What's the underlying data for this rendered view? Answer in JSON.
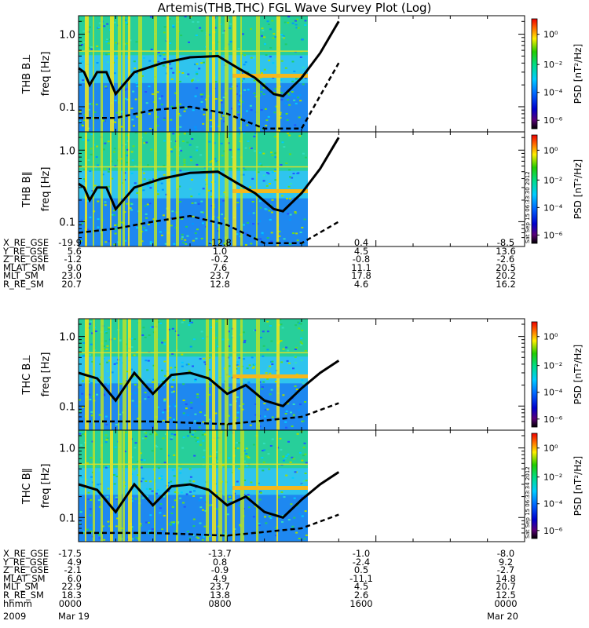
{
  "title": "Artemis(THB,THC) FGL Wave Survey Plot (Log)",
  "panels": [
    {
      "label": "THB B⊥",
      "ylabel": "freq [Hz]",
      "cbar_label": "PSD [nT²/Hz]"
    },
    {
      "label": "THB B∥",
      "ylabel": "freq [Hz]",
      "cbar_label": "PSD [nT²/Hz]"
    },
    {
      "label": "THC B⊥",
      "ylabel": "freq [Hz]",
      "cbar_label": "PSD [nT²/Hz]"
    },
    {
      "label": "THC B∥",
      "ylabel": "freq [Hz]",
      "cbar_label": "PSD [nT²/Hz]"
    }
  ],
  "ytick_labels": [
    "1.0",
    "0.1"
  ],
  "cbar_tick_labels": [
    "10⁰",
    "10⁻²",
    "10⁻⁴",
    "10⁻⁶"
  ],
  "timestamps": [
    "Sat Sep 15 06:33:30 2012",
    "Sat Sep 15 06:33:34 2012"
  ],
  "ephem_thb": {
    "rows": [
      {
        "name": "X_RE_GSE",
        "vals": [
          "-19.9",
          "-12.8",
          "0.4",
          "-8.5"
        ]
      },
      {
        "name": "Y_RE_GSE",
        "vals": [
          "5.6",
          "1.0",
          "4.5",
          "13.6"
        ]
      },
      {
        "name": "Z_RE_GSE",
        "vals": [
          "-1.2",
          "-0.2",
          "-0.8",
          "-2.6"
        ]
      },
      {
        "name": "MLAT_SM",
        "vals": [
          "9.0",
          "7.6",
          "11.1",
          "20.5"
        ]
      },
      {
        "name": "MLT_SM",
        "vals": [
          "23.0",
          "23.7",
          "17.8",
          "20.2"
        ]
      },
      {
        "name": "R_RE_SM",
        "vals": [
          "20.7",
          "12.8",
          "4.6",
          "16.2"
        ]
      }
    ]
  },
  "ephem_thc": {
    "rows": [
      {
        "name": "X_RE_GSE",
        "vals": [
          "-17.5",
          "-13.7",
          "-1.0",
          "-8.0"
        ]
      },
      {
        "name": "Y_RE_GSE",
        "vals": [
          "4.9",
          "0.8",
          "-2.4",
          "9.2"
        ]
      },
      {
        "name": "Z_RE_GSE",
        "vals": [
          "-2.1",
          "-0.9",
          "0.5",
          "-2.7"
        ]
      },
      {
        "name": "MLAT_SM",
        "vals": [
          "6.0",
          "4.9",
          "-11.1",
          "14.8"
        ]
      },
      {
        "name": "MLT_SM",
        "vals": [
          "22.9",
          "23.7",
          "4.5",
          "20.7"
        ]
      },
      {
        "name": "R_RE_SM",
        "vals": [
          "18.3",
          "13.8",
          "2.6",
          "12.5"
        ]
      },
      {
        "name": "hhmm",
        "vals": [
          "0000",
          "0800",
          "1600",
          "0000"
        ]
      }
    ]
  },
  "footer": {
    "year": "2009",
    "date_start": "Mar 19",
    "date_end": "Mar 20"
  },
  "chart_data": {
    "type": "heatmap",
    "title": "Artemis(THB,THC) FGL Wave Survey Plot (Log)",
    "x_time_hhmm": [
      "0000",
      "0800",
      "1600",
      "0000"
    ],
    "data_coverage_hhmm": [
      "0000",
      "1400"
    ],
    "y_scale": "log",
    "ylim_hz": [
      0.045,
      1.8
    ],
    "color_scale": "log",
    "clim": [
      5e-07,
      30
    ],
    "colormap": "rainbow (black-purple-blue-cyan-green-yellow-red)",
    "panels": [
      {
        "name": "THB B⊥",
        "solid_curve": [
          [
            0,
            0.34
          ],
          [
            0.3,
            0.3
          ],
          [
            0.6,
            0.2
          ],
          [
            1.0,
            0.3
          ],
          [
            1.5,
            0.3
          ],
          [
            2.0,
            0.15
          ],
          [
            3.0,
            0.3
          ],
          [
            4.5,
            0.4
          ],
          [
            6.0,
            0.48
          ],
          [
            7.5,
            0.5
          ],
          [
            8.5,
            0.35
          ],
          [
            9.5,
            0.25
          ],
          [
            10.5,
            0.15
          ],
          [
            11.0,
            0.14
          ],
          [
            12.0,
            0.25
          ],
          [
            13.0,
            0.55
          ],
          [
            14.0,
            1.5
          ]
        ],
        "dashed_curve": [
          [
            0,
            0.07
          ],
          [
            2.0,
            0.07
          ],
          [
            4.0,
            0.09
          ],
          [
            6.0,
            0.1
          ],
          [
            8.0,
            0.08
          ],
          [
            10.0,
            0.05
          ],
          [
            12.0,
            0.05
          ],
          [
            14.0,
            0.4
          ]
        ]
      },
      {
        "name": "THB B∥",
        "solid_curve": [
          [
            0,
            0.34
          ],
          [
            0.3,
            0.3
          ],
          [
            0.6,
            0.2
          ],
          [
            1.0,
            0.3
          ],
          [
            1.5,
            0.3
          ],
          [
            2.0,
            0.15
          ],
          [
            3.0,
            0.3
          ],
          [
            4.5,
            0.4
          ],
          [
            6.0,
            0.48
          ],
          [
            7.5,
            0.5
          ],
          [
            8.5,
            0.35
          ],
          [
            9.5,
            0.25
          ],
          [
            10.5,
            0.15
          ],
          [
            11.0,
            0.14
          ],
          [
            12.0,
            0.25
          ],
          [
            13.0,
            0.55
          ],
          [
            14.0,
            1.5
          ]
        ],
        "dashed_curve": [
          [
            0,
            0.07
          ],
          [
            2.0,
            0.08
          ],
          [
            4.0,
            0.1
          ],
          [
            6.0,
            0.12
          ],
          [
            8.0,
            0.09
          ],
          [
            10.0,
            0.05
          ],
          [
            12.0,
            0.05
          ],
          [
            14.0,
            0.1
          ]
        ]
      },
      {
        "name": "THC B⊥",
        "solid_curve": [
          [
            0,
            0.3
          ],
          [
            1.0,
            0.25
          ],
          [
            2.0,
            0.12
          ],
          [
            3.0,
            0.3
          ],
          [
            4.0,
            0.15
          ],
          [
            5.0,
            0.28
          ],
          [
            6.0,
            0.3
          ],
          [
            7.0,
            0.25
          ],
          [
            8.0,
            0.15
          ],
          [
            9.0,
            0.2
          ],
          [
            10.0,
            0.12
          ],
          [
            11.0,
            0.1
          ],
          [
            12.0,
            0.18
          ],
          [
            13.0,
            0.3
          ],
          [
            14.0,
            0.45
          ]
        ],
        "dashed_curve": [
          [
            0,
            0.06
          ],
          [
            4.0,
            0.06
          ],
          [
            8.0,
            0.055
          ],
          [
            12.0,
            0.07
          ],
          [
            14.0,
            0.11
          ]
        ]
      },
      {
        "name": "THC B∥",
        "solid_curve": [
          [
            0,
            0.3
          ],
          [
            1.0,
            0.25
          ],
          [
            2.0,
            0.12
          ],
          [
            3.0,
            0.3
          ],
          [
            4.0,
            0.15
          ],
          [
            5.0,
            0.28
          ],
          [
            6.0,
            0.3
          ],
          [
            7.0,
            0.25
          ],
          [
            8.0,
            0.15
          ],
          [
            9.0,
            0.2
          ],
          [
            10.0,
            0.12
          ],
          [
            11.0,
            0.1
          ],
          [
            12.0,
            0.18
          ],
          [
            13.0,
            0.3
          ],
          [
            14.0,
            0.45
          ]
        ],
        "dashed_curve": [
          [
            0,
            0.06
          ],
          [
            4.0,
            0.06
          ],
          [
            8.0,
            0.055
          ],
          [
            12.0,
            0.07
          ],
          [
            14.0,
            0.11
          ]
        ]
      }
    ]
  }
}
